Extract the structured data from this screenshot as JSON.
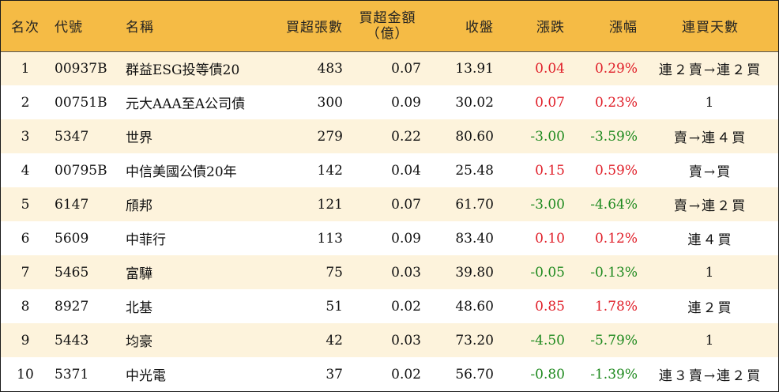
{
  "headers": {
    "rank": "名次",
    "code": "代號",
    "name": "名稱",
    "net_buy_lots": "買超張數",
    "net_buy_amount_line1": "買超金額",
    "net_buy_amount_line2": "（億）",
    "close": "收盤",
    "change": "漲跌",
    "change_pct": "漲幅",
    "consecutive_days": "連買天數"
  },
  "rows": [
    {
      "rank": "1",
      "code": "00937B",
      "name": "群益ESG投等債20",
      "lots": "483",
      "amount": "0.07",
      "close": "13.91",
      "change": "0.04",
      "pct": "0.29%",
      "dir": "up",
      "days": "連２賣→連２買"
    },
    {
      "rank": "2",
      "code": "00751B",
      "name": "元大AAA至A公司債",
      "lots": "300",
      "amount": "0.09",
      "close": "30.02",
      "change": "0.07",
      "pct": "0.23%",
      "dir": "up",
      "days": "1"
    },
    {
      "rank": "3",
      "code": "5347",
      "name": "世界",
      "lots": "279",
      "amount": "0.22",
      "close": "80.60",
      "change": "-3.00",
      "pct": "-3.59%",
      "dir": "down",
      "days": "賣→連４買"
    },
    {
      "rank": "4",
      "code": "00795B",
      "name": "中信美國公債20年",
      "lots": "142",
      "amount": "0.04",
      "close": "25.48",
      "change": "0.15",
      "pct": "0.59%",
      "dir": "up",
      "days": "賣→買"
    },
    {
      "rank": "5",
      "code": "6147",
      "name": "頎邦",
      "lots": "121",
      "amount": "0.07",
      "close": "61.70",
      "change": "-3.00",
      "pct": "-4.64%",
      "dir": "down",
      "days": "賣→連２買"
    },
    {
      "rank": "6",
      "code": "5609",
      "name": "中菲行",
      "lots": "113",
      "amount": "0.09",
      "close": "83.40",
      "change": "0.10",
      "pct": "0.12%",
      "dir": "up",
      "days": "連４買"
    },
    {
      "rank": "7",
      "code": "5465",
      "name": "富驊",
      "lots": "75",
      "amount": "0.03",
      "close": "39.80",
      "change": "-0.05",
      "pct": "-0.13%",
      "dir": "down",
      "days": "1"
    },
    {
      "rank": "8",
      "code": "8927",
      "name": "北基",
      "lots": "51",
      "amount": "0.02",
      "close": "48.60",
      "change": "0.85",
      "pct": "1.78%",
      "dir": "up",
      "days": "連２買"
    },
    {
      "rank": "9",
      "code": "5443",
      "name": "均豪",
      "lots": "42",
      "amount": "0.03",
      "close": "73.20",
      "change": "-4.50",
      "pct": "-5.79%",
      "dir": "down",
      "days": "1"
    },
    {
      "rank": "10",
      "code": "5371",
      "name": "中光電",
      "lots": "37",
      "amount": "0.02",
      "close": "56.70",
      "change": "-0.80",
      "pct": "-1.39%",
      "dir": "down",
      "days": "連３賣→連２買"
    }
  ],
  "colors": {
    "header_bg": "#f5bb45",
    "odd_row_bg": "#fdf3dc",
    "even_row_bg": "#ffffff",
    "up": "#e0202a",
    "down": "#1f8a1f"
  }
}
